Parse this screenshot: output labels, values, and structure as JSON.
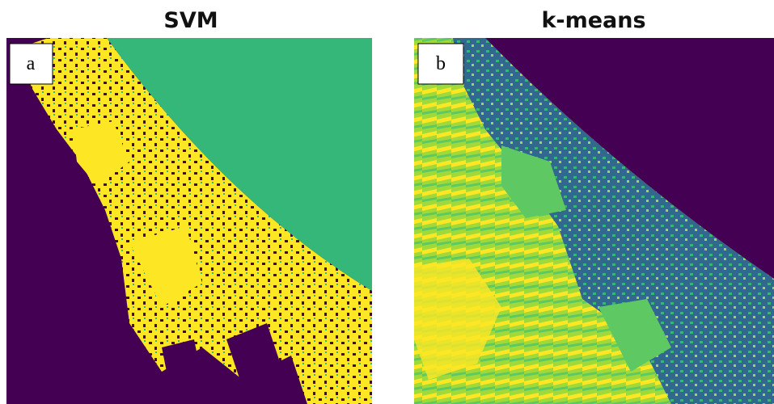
{
  "panels": [
    {
      "title": "SVM",
      "label": "a"
    },
    {
      "title": "k-means",
      "label": "b"
    }
  ]
}
